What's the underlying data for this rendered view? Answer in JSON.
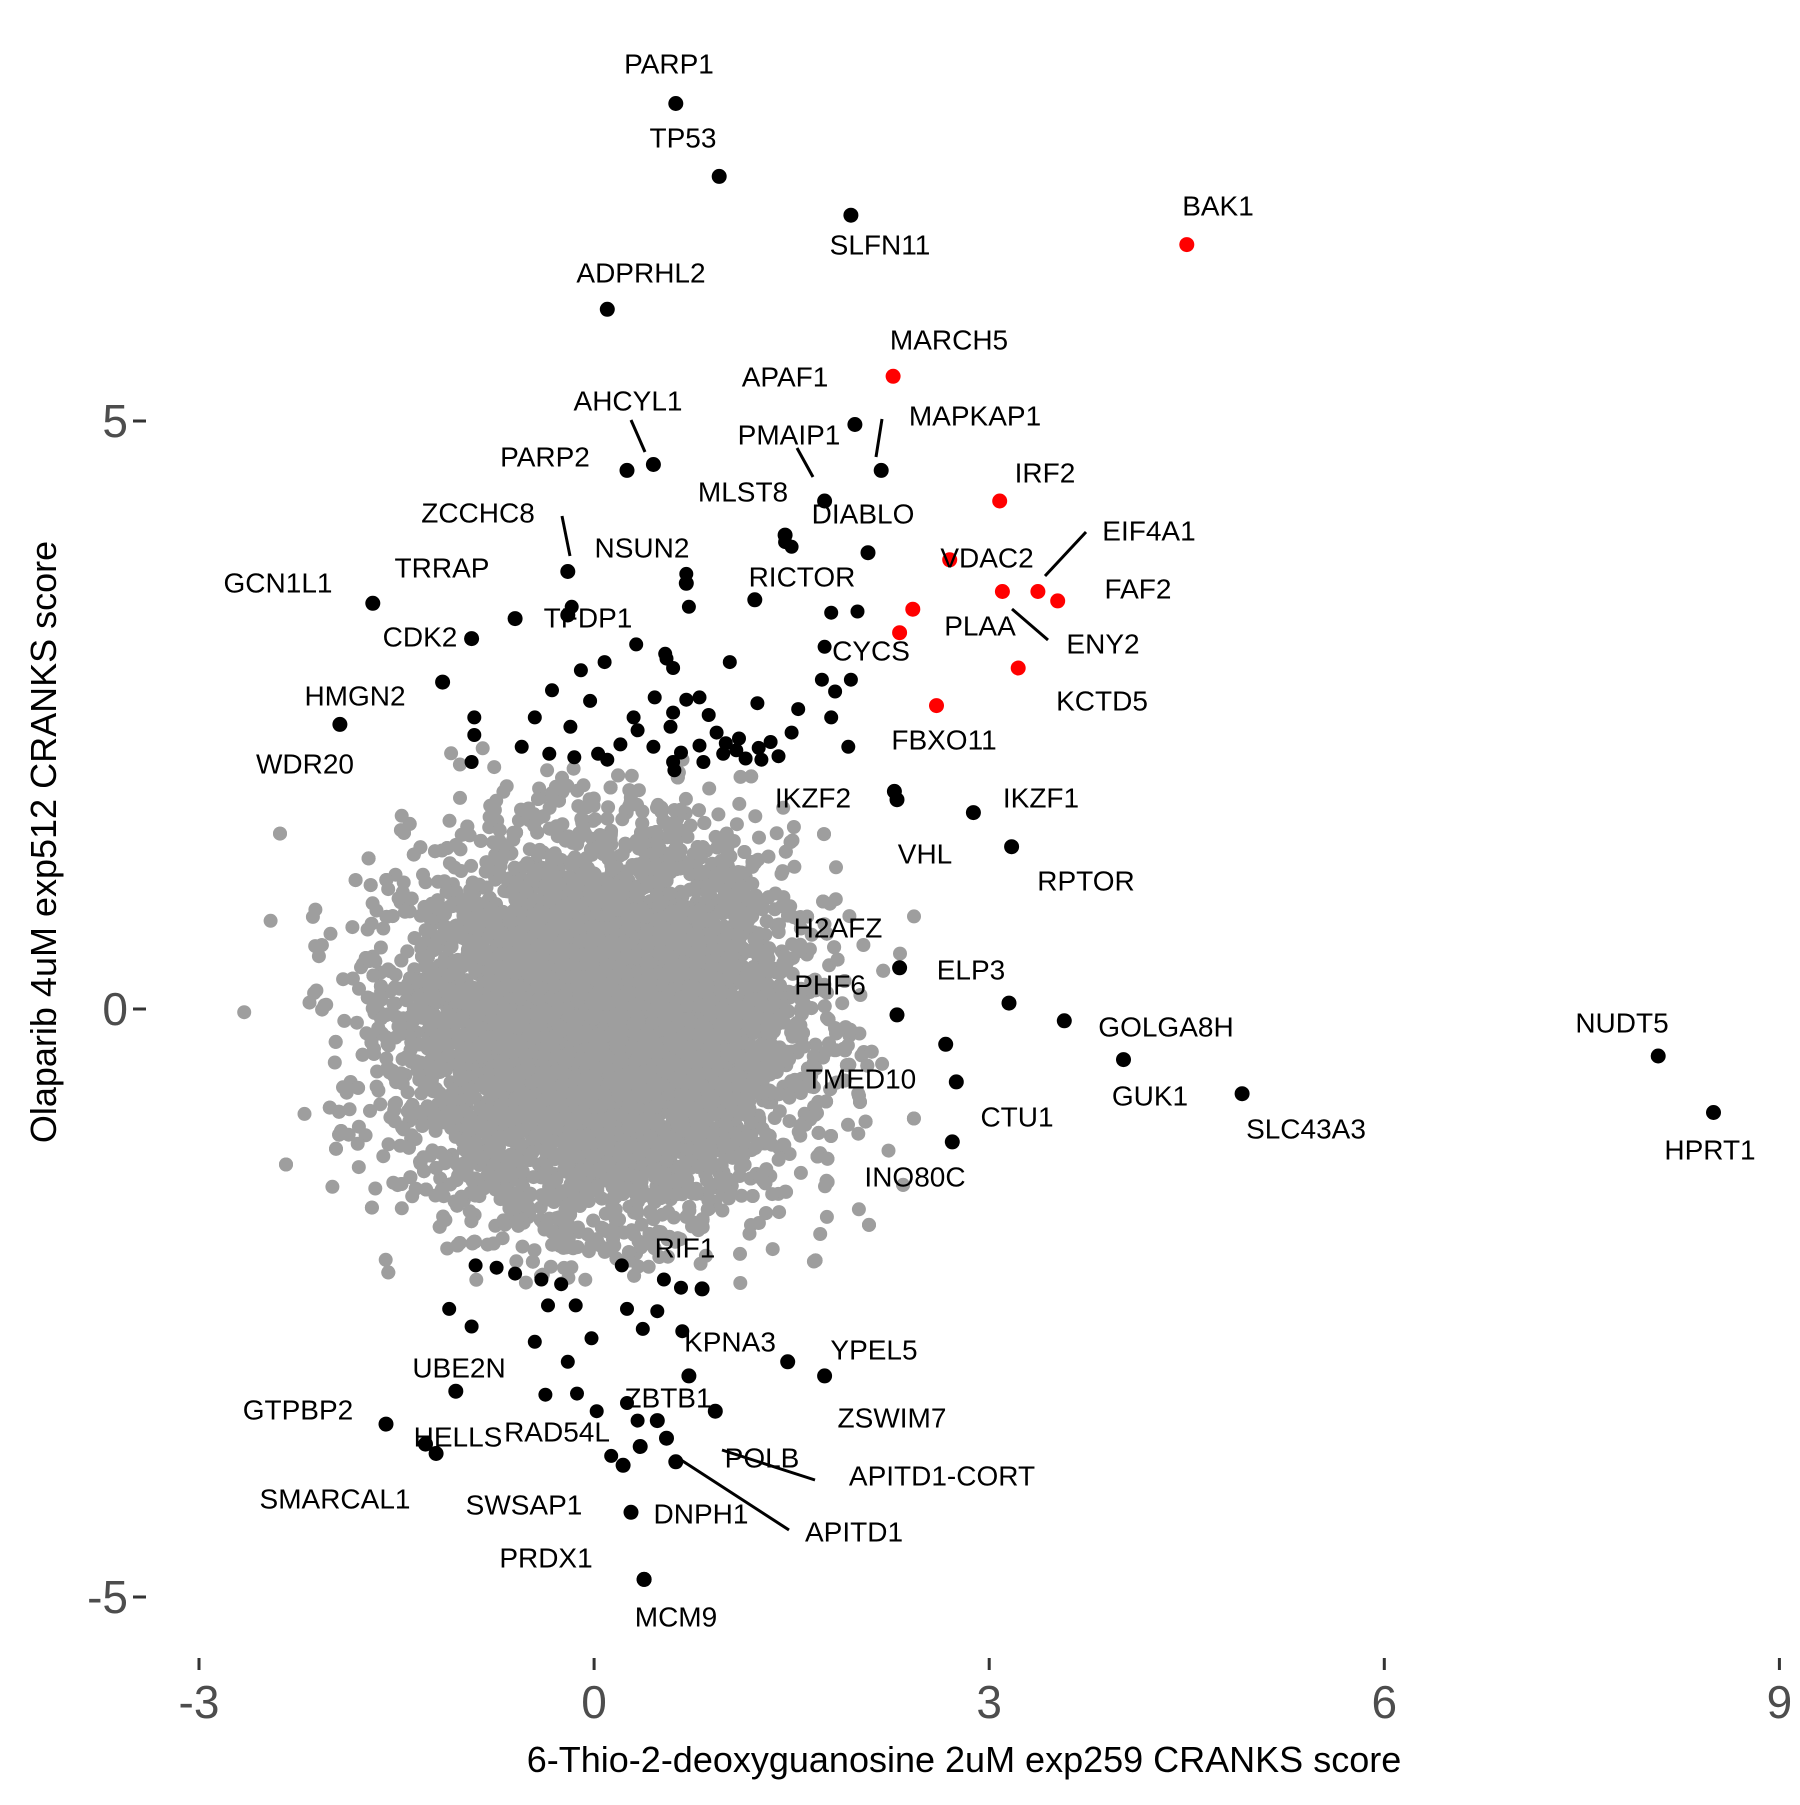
{
  "chart_data": {
    "type": "scatter",
    "xlabel": "6-Thio-2-deoxyguanosine 2uM exp259 CRANKS score",
    "ylabel": "Olaparib 4uM exp512 CRANKS score",
    "xlim": [
      -3.35,
      9.05
    ],
    "ylim": [
      -5.4,
      8.4
    ],
    "xticks": [
      "-3",
      "0",
      "3",
      "6",
      "9"
    ],
    "yticks": [
      "-5",
      "0",
      "5"
    ],
    "grid": false,
    "colors": {
      "background": "#9e9e9e",
      "highlight": "#000000",
      "red": "#ff0000",
      "text": "#000000",
      "tick": "#4d4d4d"
    },
    "labeled_points": [
      {
        "label": "PARP1",
        "x": 0.62,
        "y": 7.7,
        "color": "black"
      },
      {
        "label": "TP53",
        "x": 0.95,
        "y": 7.08,
        "color": "black"
      },
      {
        "label": "SLFN11",
        "x": 1.95,
        "y": 6.75,
        "color": "black"
      },
      {
        "label": "BAK1",
        "x": 4.5,
        "y": 6.5,
        "color": "red"
      },
      {
        "label": "ADPRHL2",
        "x": 0.1,
        "y": 5.95,
        "color": "black"
      },
      {
        "label": "MARCH5",
        "x": 2.27,
        "y": 5.38,
        "color": "red"
      },
      {
        "label": "APAF1",
        "x": 1.98,
        "y": 4.97,
        "color": "black"
      },
      {
        "label": "AHCYL1",
        "x": 0.45,
        "y": 4.63,
        "color": "black"
      },
      {
        "label": "PARP2",
        "x": 0.25,
        "y": 4.58,
        "color": "black"
      },
      {
        "label": "PMAIP1",
        "x": 1.75,
        "y": 4.32,
        "color": "black"
      },
      {
        "label": "MAPKAP1",
        "x": 2.18,
        "y": 4.58,
        "color": "black"
      },
      {
        "label": "IRF2",
        "x": 3.08,
        "y": 4.32,
        "color": "red"
      },
      {
        "label": "MLST8",
        "x": 1.45,
        "y": 4.03,
        "color": "black"
      },
      {
        "label": "DIABLO",
        "x": 2.08,
        "y": 3.88,
        "color": "black"
      },
      {
        "label": "ZCCHC8",
        "x": -0.2,
        "y": 3.72,
        "color": "black"
      },
      {
        "label": "NSUN2",
        "x": 0.7,
        "y": 3.62,
        "color": "black"
      },
      {
        "label": "VDAC2",
        "x": 2.7,
        "y": 3.82,
        "color": "red"
      },
      {
        "label": "EIF4A1",
        "x": 3.37,
        "y": 3.55,
        "color": "red"
      },
      {
        "label": "GCN1L1",
        "x": -1.68,
        "y": 3.45,
        "color": "black"
      },
      {
        "label": "TRRAP",
        "x": -0.2,
        "y": 3.35,
        "color": "black"
      },
      {
        "label": "RICTOR",
        "x": 1.22,
        "y": 3.48,
        "color": "black"
      },
      {
        "label": "FAF2",
        "x": 3.52,
        "y": 3.47,
        "color": "red"
      },
      {
        "label": "PLAA",
        "x": 3.1,
        "y": 3.55,
        "color": "red"
      },
      {
        "label": "ENY2",
        "x": 2.42,
        "y": 3.4,
        "color": "red"
      },
      {
        "label": "TFDP1",
        "x": -0.6,
        "y": 3.32,
        "color": "black"
      },
      {
        "label": "CDK2",
        "x": -0.93,
        "y": 3.15,
        "color": "black"
      },
      {
        "label": "CYCS",
        "x": 2.32,
        "y": 3.2,
        "color": "red"
      },
      {
        "label": "KCTD5",
        "x": 3.22,
        "y": 2.9,
        "color": "red"
      },
      {
        "label": "HMGN2",
        "x": -1.15,
        "y": 2.78,
        "color": "black"
      },
      {
        "label": "FBXO11",
        "x": 2.6,
        "y": 2.58,
        "color": "red"
      },
      {
        "label": "WDR20",
        "x": -1.93,
        "y": 2.42,
        "color": "black"
      },
      {
        "label": "IKZF2",
        "x": 2.28,
        "y": 1.85,
        "color": "black"
      },
      {
        "label": "IKZF1",
        "x": 2.88,
        "y": 1.67,
        "color": "black"
      },
      {
        "label": "VHL",
        "x": 2.3,
        "y": 1.78,
        "color": "black"
      },
      {
        "label": "RPTOR",
        "x": 3.17,
        "y": 1.38,
        "color": "black"
      },
      {
        "label": "H2AFZ",
        "x": 2.32,
        "y": 0.35,
        "color": "black"
      },
      {
        "label": "ELP3",
        "x": 3.15,
        "y": 0.05,
        "color": "black"
      },
      {
        "label": "PHF6",
        "x": 2.3,
        "y": -0.05,
        "color": "black"
      },
      {
        "label": "GOLGA8H",
        "x": 3.57,
        "y": -0.1,
        "color": "black"
      },
      {
        "label": "NUDT5",
        "x": 8.08,
        "y": -0.4,
        "color": "black"
      },
      {
        "label": "GUK1",
        "x": 4.02,
        "y": -0.43,
        "color": "black"
      },
      {
        "label": "TMED10",
        "x": 2.67,
        "y": -0.3,
        "color": "black"
      },
      {
        "label": "CTU1",
        "x": 2.75,
        "y": -0.62,
        "color": "black"
      },
      {
        "label": "SLC43A3",
        "x": 4.92,
        "y": -0.72,
        "color": "black"
      },
      {
        "label": "HPRT1",
        "x": 8.5,
        "y": -0.88,
        "color": "black"
      },
      {
        "label": "INO80C",
        "x": 2.72,
        "y": -1.13,
        "color": "black"
      },
      {
        "label": "RIF1",
        "x": 0.82,
        "y": -2.38,
        "color": "black"
      },
      {
        "label": "KPNA3",
        "x": 1.47,
        "y": -3.0,
        "color": "black"
      },
      {
        "label": "YPEL5",
        "x": 1.75,
        "y": -3.12,
        "color": "black"
      },
      {
        "label": "UBE2N",
        "x": -1.05,
        "y": -3.25,
        "color": "black"
      },
      {
        "label": "ZBTB1",
        "x": 0.72,
        "y": -3.12,
        "color": "black"
      },
      {
        "label": "ZSWIM7",
        "x": 0.92,
        "y": -3.42,
        "color": "black"
      },
      {
        "label": "GTPBP2",
        "x": -1.58,
        "y": -3.53,
        "color": "black"
      },
      {
        "label": "RAD54L",
        "x": 0.48,
        "y": -3.5,
        "color": "black"
      },
      {
        "label": "HELLS",
        "x": -1.28,
        "y": -3.7,
        "color": "black"
      },
      {
        "label": "POLB",
        "x": 0.55,
        "y": -3.65,
        "color": "black"
      },
      {
        "label": "APITD1-CORT",
        "x": 0.35,
        "y": -3.72,
        "color": "black"
      },
      {
        "label": "SMARCAL1",
        "x": -1.2,
        "y": -3.78,
        "color": "black"
      },
      {
        "label": "SWSAP1",
        "x": 0.22,
        "y": -3.88,
        "color": "black"
      },
      {
        "label": "APITD1",
        "x": 0.62,
        "y": -3.85,
        "color": "black"
      },
      {
        "label": "DNPH1",
        "x": 0.28,
        "y": -4.28,
        "color": "black"
      },
      {
        "label": "PRDX1",
        "x": 0.38,
        "y": -4.85,
        "color": "black"
      }
    ],
    "unlabeled_black": [
      [
        0.7,
        3.7
      ],
      [
        -0.17,
        3.42
      ],
      [
        0.72,
        3.42
      ],
      [
        1.45,
        3.97
      ],
      [
        1.5,
        3.93
      ],
      [
        2.0,
        3.38
      ],
      [
        1.8,
        3.37
      ],
      [
        0.32,
        3.1
      ],
      [
        0.54,
        3.02
      ],
      [
        0.55,
        2.98
      ],
      [
        0.08,
        2.95
      ],
      [
        -0.1,
        2.88
      ],
      [
        0.6,
        2.9
      ],
      [
        1.03,
        2.95
      ],
      [
        1.75,
        3.08
      ],
      [
        1.95,
        2.8
      ],
      [
        1.73,
        2.8
      ],
      [
        1.83,
        2.7
      ],
      [
        -0.32,
        2.71
      ],
      [
        -0.03,
        2.62
      ],
      [
        0.46,
        2.65
      ],
      [
        0.7,
        2.63
      ],
      [
        0.8,
        2.65
      ],
      [
        1.24,
        2.6
      ],
      [
        -0.91,
        2.48
      ],
      [
        -0.45,
        2.48
      ],
      [
        0.3,
        2.48
      ],
      [
        0.6,
        2.52
      ],
      [
        0.87,
        2.5
      ],
      [
        1.8,
        2.48
      ],
      [
        1.55,
        2.55
      ],
      [
        -0.18,
        2.4
      ],
      [
        -0.91,
        2.33
      ],
      [
        0.33,
        2.37
      ],
      [
        0.58,
        2.4
      ],
      [
        0.93,
        2.35
      ],
      [
        1.1,
        2.3
      ],
      [
        1.5,
        2.35
      ],
      [
        0.2,
        2.25
      ],
      [
        -0.55,
        2.23
      ],
      [
        -0.34,
        2.17
      ],
      [
        0.03,
        2.17
      ],
      [
        0.45,
        2.23
      ],
      [
        0.66,
        2.18
      ],
      [
        0.8,
        2.24
      ],
      [
        0.98,
        2.17
      ],
      [
        1.08,
        2.2
      ],
      [
        1.25,
        2.22
      ],
      [
        1.34,
        2.27
      ],
      [
        -0.15,
        2.14
      ],
      [
        0.1,
        2.12
      ],
      [
        1.27,
        2.12
      ],
      [
        -0.93,
        2.1
      ],
      [
        0.6,
        2.1
      ],
      [
        0.83,
        2.1
      ],
      [
        1.15,
        2.13
      ],
      [
        1.4,
        2.15
      ],
      [
        1.0,
        2.26
      ],
      [
        1.93,
        2.23
      ],
      [
        0.61,
        2.03
      ],
      [
        -0.9,
        -2.18
      ],
      [
        -0.74,
        -2.2
      ],
      [
        -0.6,
        -2.25
      ],
      [
        -0.4,
        -2.3
      ],
      [
        -0.25,
        -2.34
      ],
      [
        0.21,
        -2.18
      ],
      [
        0.53,
        -2.3
      ],
      [
        0.66,
        -2.37
      ],
      [
        -0.35,
        -2.52
      ],
      [
        -0.14,
        -2.52
      ],
      [
        0.25,
        -2.55
      ],
      [
        0.48,
        -2.57
      ],
      [
        -1.1,
        -2.55
      ],
      [
        -0.93,
        -2.7
      ],
      [
        -0.45,
        -2.83
      ],
      [
        -0.02,
        -2.8
      ],
      [
        0.37,
        -2.72
      ],
      [
        0.67,
        -2.74
      ],
      [
        -0.2,
        -3.0
      ],
      [
        -0.13,
        -3.27
      ],
      [
        0.02,
        -3.42
      ],
      [
        0.25,
        -3.35
      ],
      [
        0.33,
        -3.5
      ],
      [
        -0.37,
        -3.28
      ],
      [
        0.13,
        -3.8
      ]
    ],
    "mcm9": {
      "label": "MCM9",
      "x": 0.38,
      "y": -4.85
    },
    "background_cloud": {
      "n": 9000,
      "x_mean": 0.05,
      "y_mean": -0.15,
      "x_sd": 0.72,
      "y_sd": 0.78
    }
  }
}
